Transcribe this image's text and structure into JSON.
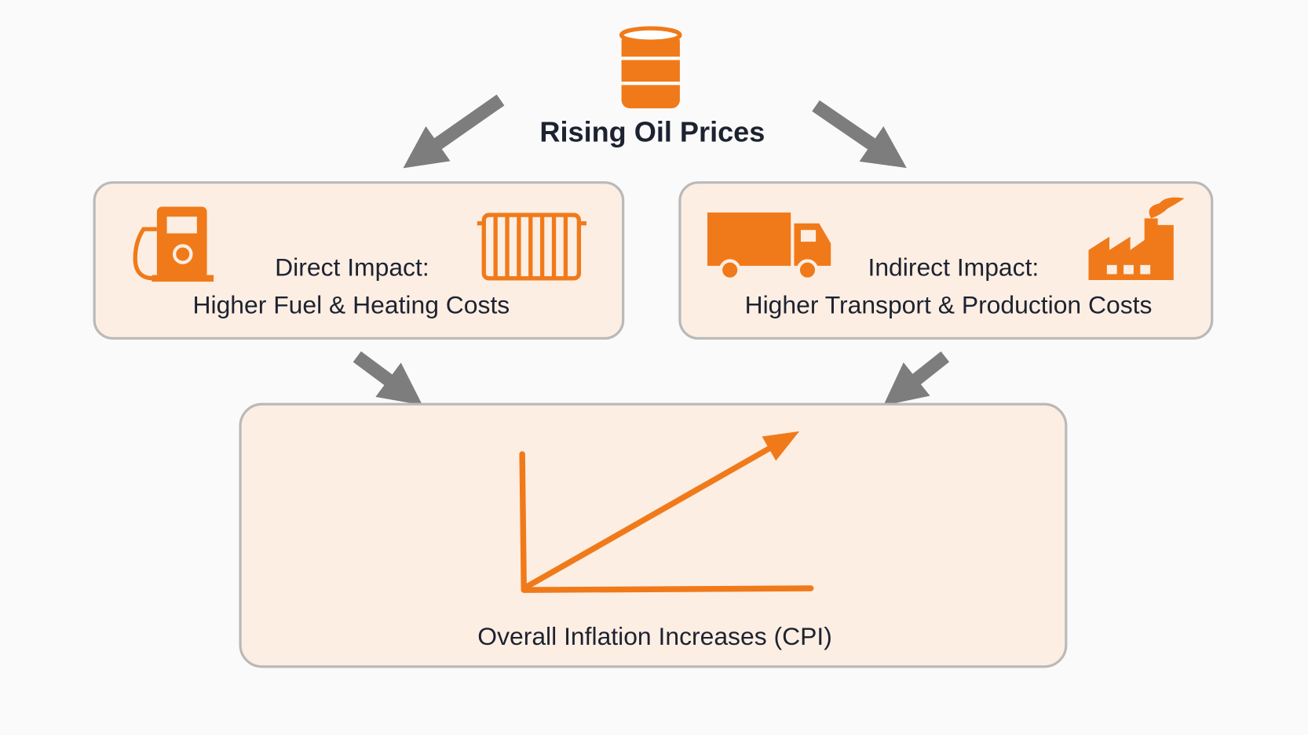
{
  "top": {
    "label": "Rising Oil Prices"
  },
  "nodes": [
    {
      "title": "Direct Impact:",
      "label": "Higher Fuel & Heating Costs"
    },
    {
      "title": "Indirect Impact:",
      "label": "Higher Transport & Production Costs"
    },
    {
      "label": "Overall Inflation Increases (CPI)"
    }
  ]
}
